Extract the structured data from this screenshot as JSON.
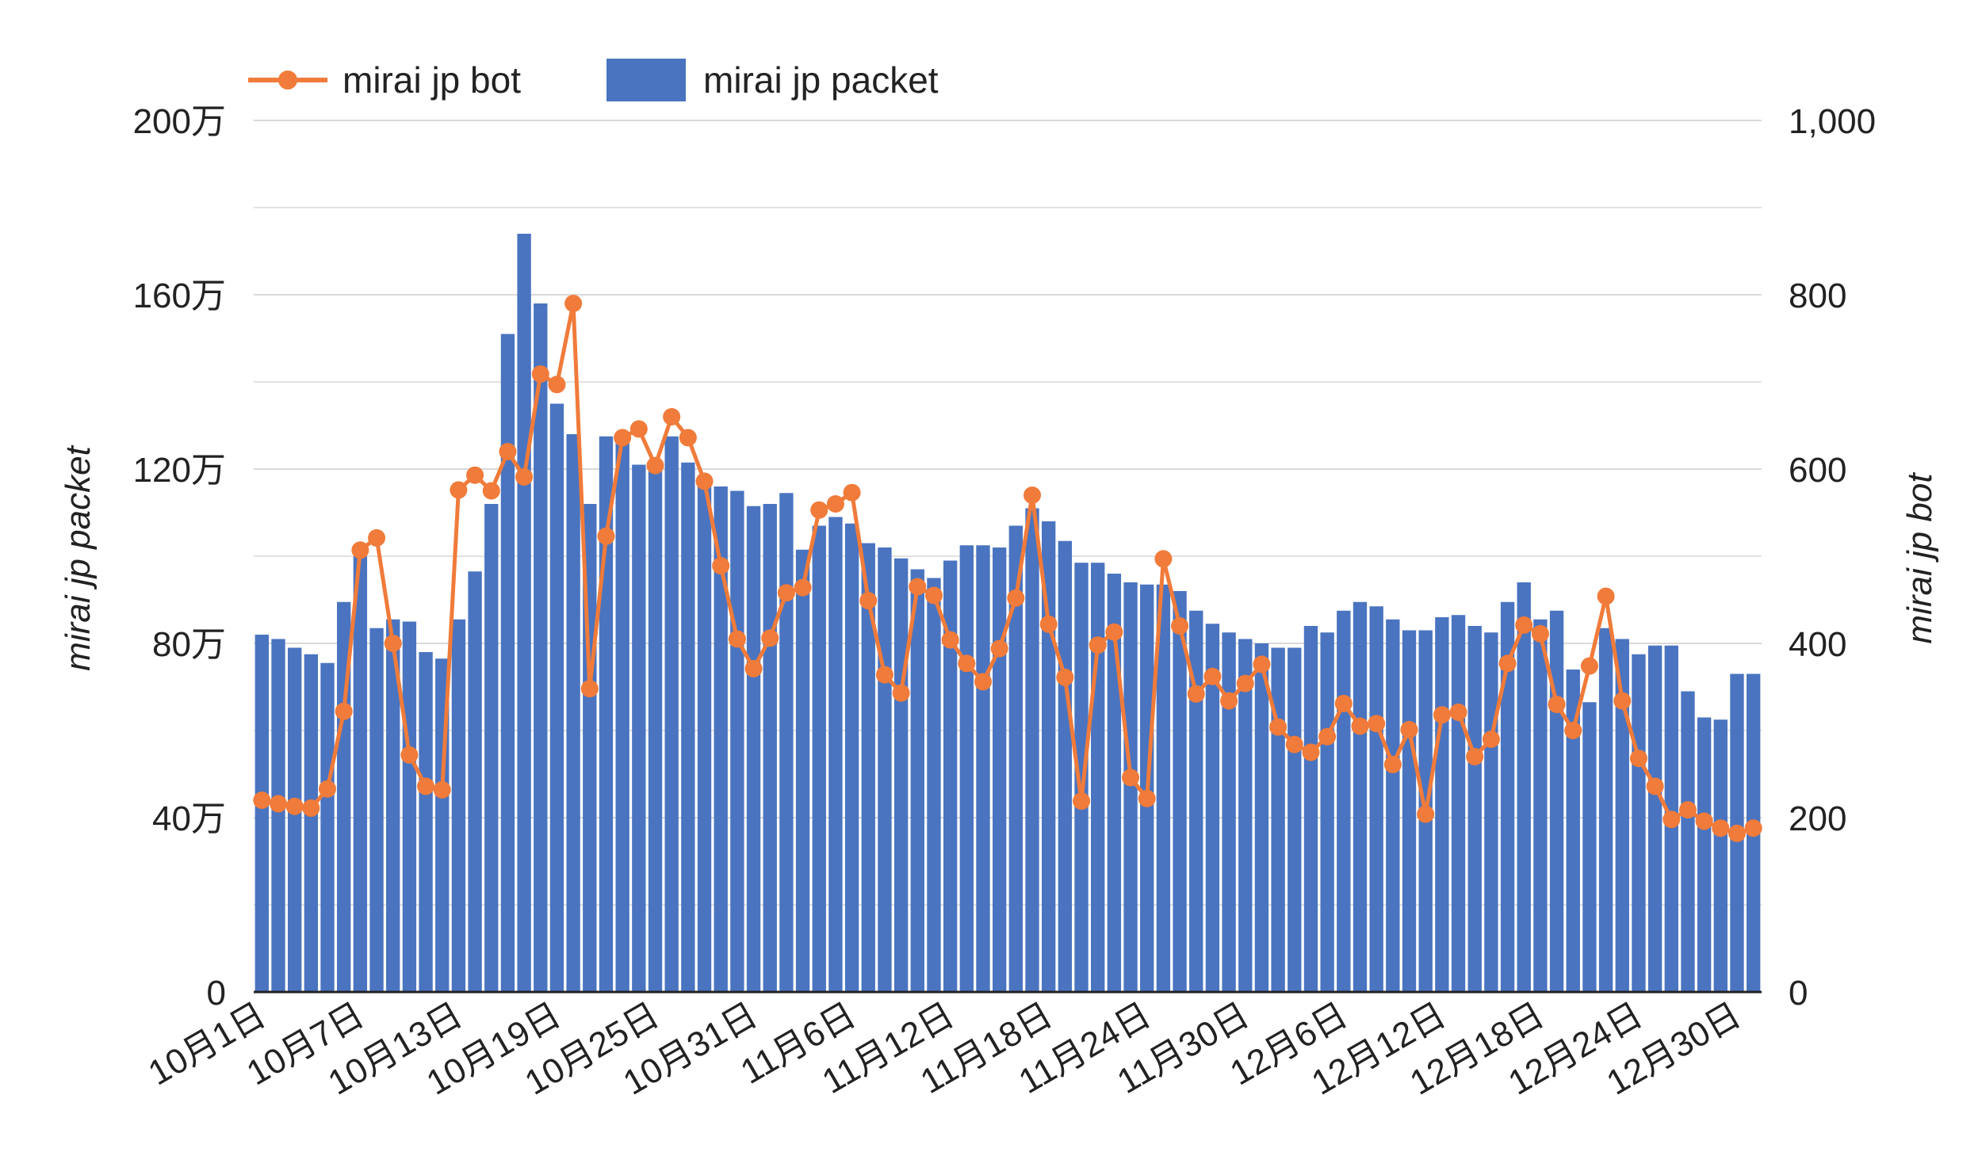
{
  "colors": {
    "packet": "#4a74c0",
    "bot": "#f07b3a",
    "grid": "#d9d9d9",
    "axis": "#222222"
  },
  "chart_data": {
    "type": "bar+line",
    "title": "",
    "legend": {
      "placement": "top-left",
      "items": [
        "mirai jp bot",
        "mirai jp packet"
      ]
    },
    "grid": true,
    "y_left": {
      "label": "mirai jp packet",
      "range": [
        0,
        2000000
      ],
      "tick_labels": [
        "0",
        "40万",
        "80万",
        "120万",
        "160万",
        "200万"
      ]
    },
    "y_right": {
      "label": "mirai jp bot",
      "range": [
        0,
        1000
      ],
      "tick_labels": [
        "0",
        "200",
        "400",
        "600",
        "800",
        "1,000"
      ]
    },
    "x_tick_labels": [
      "10月1日",
      "10月7日",
      "10月13日",
      "10月19日",
      "10月25日",
      "10月31日",
      "11月6日",
      "11月12日",
      "11月18日",
      "11月24日",
      "11月30日",
      "12月6日",
      "12月12日",
      "12月18日",
      "12月24日",
      "12月30日"
    ],
    "x_tick_every": 6,
    "series": [
      {
        "name": "mirai jp packet",
        "type": "bar",
        "axis": "left",
        "values": [
          820000,
          810000,
          790000,
          775000,
          755000,
          895000,
          1000000,
          835000,
          855000,
          850000,
          780000,
          765000,
          855000,
          965000,
          1120000,
          1510000,
          1740000,
          1580000,
          1350000,
          1280000,
          1120000,
          1275000,
          1265000,
          1210000,
          1210000,
          1275000,
          1215000,
          1185000,
          1160000,
          1150000,
          1115000,
          1120000,
          1145000,
          1015000,
          1070000,
          1090000,
          1075000,
          1030000,
          1020000,
          995000,
          970000,
          950000,
          990000,
          1025000,
          1025000,
          1020000,
          1070000,
          1110000,
          1080000,
          1035000,
          985000,
          985000,
          960000,
          940000,
          935000,
          935000,
          920000,
          875000,
          845000,
          825000,
          810000,
          800000,
          790000,
          790000,
          840000,
          825000,
          875000,
          895000,
          885000,
          855000,
          830000,
          830000,
          860000,
          865000,
          840000,
          825000,
          895000,
          940000,
          855000,
          875000,
          740000,
          665000,
          835000,
          810000,
          775000,
          795000,
          795000,
          690000,
          630000,
          625000,
          730000,
          730000
        ]
      },
      {
        "name": "mirai jp bot",
        "type": "line",
        "axis": "right",
        "values": [
          220,
          216,
          213,
          211,
          233,
          322,
          507,
          521,
          400,
          272,
          236,
          232,
          576,
          593,
          575,
          620,
          591,
          709,
          697,
          790,
          348,
          523,
          636,
          646,
          604,
          660,
          636,
          586,
          489,
          405,
          371,
          406,
          458,
          464,
          553,
          560,
          573,
          449,
          364,
          343,
          465,
          455,
          404,
          377,
          356,
          394,
          452,
          570,
          422,
          361,
          219,
          398,
          413,
          246,
          222,
          497,
          420,
          342,
          362,
          334,
          354,
          376,
          304,
          284,
          275,
          293,
          331,
          305,
          308,
          261,
          301,
          204,
          318,
          321,
          270,
          290,
          377,
          421,
          411,
          330,
          300,
          374,
          454,
          334,
          268,
          236,
          198,
          209,
          196,
          188,
          182,
          188
        ]
      }
    ]
  }
}
